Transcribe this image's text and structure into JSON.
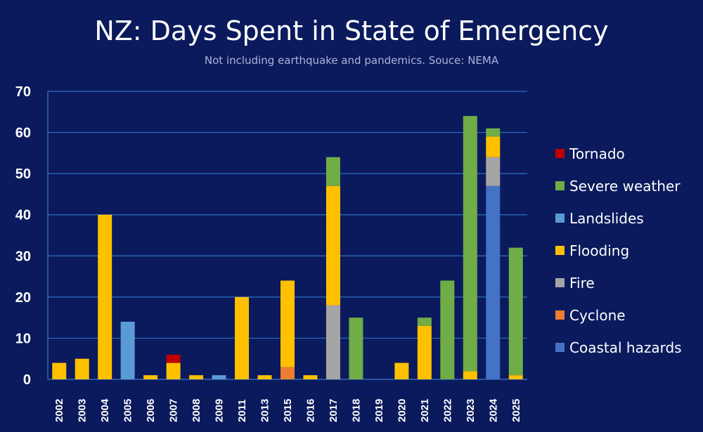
{
  "chart_data": {
    "type": "bar",
    "stacked": true,
    "title": "NZ: Days Spent in State of Emergency",
    "subtitle": "Not including earthquake and pandemics. Souce: NEMA",
    "xlabel": "",
    "ylabel": "",
    "ylim": [
      0,
      70
    ],
    "yticks": [
      0,
      10,
      20,
      30,
      40,
      50,
      60,
      70
    ],
    "grid": true,
    "legend_position": "right",
    "categories": [
      "2002",
      "2003",
      "2004",
      "2005",
      "2006",
      "2007",
      "2008",
      "2009",
      "2011",
      "2013",
      "2015",
      "2016",
      "2017",
      "2018",
      "2019",
      "2020",
      "2021",
      "2022",
      "2023",
      "2024",
      "2025"
    ],
    "series": [
      {
        "name": "Coastal hazards",
        "color": "#4472c4",
        "values": [
          0,
          0,
          0,
          0,
          0,
          0,
          0,
          0,
          0,
          0,
          0,
          0,
          0,
          0,
          0,
          0,
          0,
          0,
          0,
          47,
          0
        ]
      },
      {
        "name": "Cyclone",
        "color": "#ed7d31",
        "values": [
          0,
          0,
          0,
          0,
          0,
          0,
          0,
          0,
          0,
          0,
          3,
          0,
          0,
          0,
          0,
          0,
          0,
          0,
          0,
          0,
          0
        ]
      },
      {
        "name": "Fire",
        "color": "#a5a5a5",
        "values": [
          0,
          0,
          0,
          0,
          0,
          0,
          0,
          0,
          0,
          0,
          0,
          0,
          18,
          0,
          0,
          0,
          0,
          0,
          0,
          7,
          0
        ]
      },
      {
        "name": "Flooding",
        "color": "#ffc000",
        "values": [
          4,
          5,
          40,
          0,
          1,
          4,
          1,
          0,
          20,
          1,
          21,
          1,
          29,
          0,
          0,
          4,
          13,
          0,
          2,
          5,
          1
        ]
      },
      {
        "name": "Landslides",
        "color": "#5b9bd5",
        "values": [
          0,
          0,
          0,
          14,
          0,
          0,
          0,
          1,
          0,
          0,
          0,
          0,
          0,
          0,
          0,
          0,
          0,
          0,
          0,
          0,
          0
        ]
      },
      {
        "name": "Severe weather",
        "color": "#70ad47",
        "values": [
          0,
          0,
          0,
          0,
          0,
          0,
          0,
          0,
          0,
          0,
          0,
          0,
          7,
          15,
          0,
          0,
          2,
          24,
          62,
          2,
          31
        ]
      },
      {
        "name": "Tornado",
        "color": "#c00000",
        "values": [
          0,
          0,
          0,
          0,
          0,
          2,
          0,
          0,
          0,
          0,
          0,
          0,
          0,
          0,
          0,
          0,
          0,
          0,
          0,
          0,
          0
        ]
      }
    ],
    "legend_order": [
      "Tornado",
      "Severe weather",
      "Landslides",
      "Flooding",
      "Fire",
      "Cyclone",
      "Coastal hazards"
    ]
  }
}
